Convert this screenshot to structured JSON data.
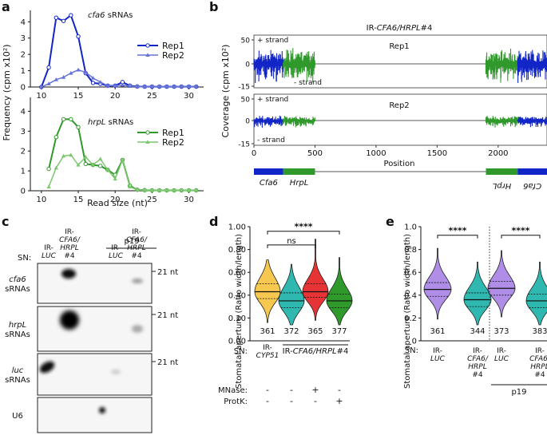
{
  "panels": {
    "a": "a",
    "b": "b",
    "c": "c",
    "d": "d",
    "e": "e"
  },
  "colors": {
    "blue": "#1226c7",
    "lightblue": "#6673d6",
    "green": "#2f9a2b",
    "lightgreen": "#7cc76e",
    "yellow": "#f6c84f",
    "teal": "#2fb8b0",
    "red": "#e63436",
    "purple": "#b08ee8"
  },
  "chart_data": [
    {
      "id": "a-cfa6",
      "type": "line",
      "title": "cfa6 sRNAs",
      "title_italic": "cfa6",
      "title_rest": " sRNAs",
      "ylabel": "Frequency (cpm x10²)",
      "xticks": [
        10,
        15,
        20,
        25,
        30
      ],
      "yticks": [
        0,
        1,
        2,
        3,
        4
      ],
      "xlim": [
        8.5,
        32
      ],
      "ylim": [
        0,
        4.7
      ],
      "x": [
        10,
        11,
        12,
        13,
        14,
        15,
        16,
        17,
        18,
        19,
        20,
        21,
        22,
        23,
        24,
        25,
        26,
        27,
        28,
        29,
        30,
        31
      ],
      "series": [
        {
          "name": "Rep1",
          "marker": "circle",
          "values": [
            0,
            1.2,
            4.25,
            4.05,
            4.4,
            3.1,
            0.85,
            0.25,
            0.2,
            0.08,
            0.08,
            0.3,
            0.08,
            0.03,
            0.02,
            0.02,
            0.02,
            0.02,
            0.02,
            0.02,
            0.02,
            0.02
          ]
        },
        {
          "name": "Rep2",
          "marker": "triangle",
          "values": [
            0,
            0.2,
            0.45,
            0.6,
            0.85,
            1.05,
            0.9,
            0.55,
            0.3,
            0.08,
            0.08,
            0.12,
            0.05,
            0.02,
            0.02,
            0.02,
            0.02,
            0.02,
            0.02,
            0.02,
            0.02,
            0.02
          ]
        }
      ]
    },
    {
      "id": "a-hrpl",
      "type": "line",
      "title": "hrpL sRNAs",
      "title_italic": "hrpL",
      "title_rest": " sRNAs",
      "xlabel": "Read size (nt)",
      "xticks": [
        10,
        15,
        20,
        25,
        30
      ],
      "yticks": [
        0,
        1,
        2,
        3,
        4
      ],
      "xlim": [
        8.5,
        32
      ],
      "ylim": [
        0,
        4.7
      ],
      "x": [
        11,
        12,
        13,
        14,
        15,
        16,
        17,
        18,
        19,
        20,
        21,
        22,
        23,
        24,
        25,
        26,
        27,
        28,
        29,
        30,
        31
      ],
      "series": [
        {
          "name": "Rep1",
          "marker": "circle",
          "values": [
            1.1,
            2.7,
            3.6,
            3.6,
            3.2,
            1.35,
            1.3,
            1.25,
            1.05,
            0.8,
            1.55,
            0.25,
            0.05,
            0.03,
            0.02,
            0.02,
            0.02,
            0.02,
            0.02,
            0.02,
            0.02
          ]
        },
        {
          "name": "Rep2",
          "marker": "triangle",
          "values": [
            0.2,
            1.15,
            1.75,
            1.8,
            1.3,
            1.7,
            1.3,
            1.6,
            1.05,
            0.6,
            1.55,
            0.2,
            0.05,
            0.03,
            0.02,
            0.02,
            0.02,
            0.02,
            0.02,
            0.02,
            0.02
          ]
        }
      ]
    },
    {
      "id": "b",
      "type": "area",
      "title": "IR-CFA6/HRPL#4",
      "title_pre": "IR-",
      "title_italic": "CFA6/HRPL",
      "title_post": "#4",
      "ylabel": "Coverage (cpm x10²)",
      "xlabel": "Position",
      "xticks": [
        0,
        500,
        1000,
        1500,
        2000
      ],
      "xlim": [
        0,
        2400
      ],
      "strand_plus": "+ strand",
      "strand_minus": "- strand",
      "tracks": [
        {
          "name": "Rep1",
          "yticks": [
            50,
            0,
            -15
          ],
          "ytick_labels": [
            "50",
            "0",
            "-15"
          ]
        },
        {
          "name": "Rep2",
          "yticks": [
            50,
            0,
            -15
          ],
          "ytick_labels": [
            "50",
            "0",
            "-15"
          ]
        }
      ],
      "regions": [
        {
          "name": "Cfa6",
          "start": 0,
          "end": 240,
          "color": "blue",
          "orientation": "forward"
        },
        {
          "name": "HrpL",
          "start": 240,
          "end": 500,
          "color": "green",
          "orientation": "forward"
        },
        {
          "name": "HrpL",
          "start": 1900,
          "end": 2160,
          "color": "green",
          "orientation": "reverse"
        },
        {
          "name": "Cfa6",
          "start": 2160,
          "end": 2400,
          "color": "blue",
          "orientation": "reverse"
        }
      ]
    },
    {
      "id": "d",
      "type": "violin",
      "ylabel": "Stomatal aperture (Ratio width/length)",
      "yticks": [
        0,
        0.2,
        0.4,
        0.6,
        0.8,
        1.0
      ],
      "ytick_labels": [
        "0.00",
        "0.20",
        "0.40",
        "0.60",
        "0.80",
        "1.00"
      ],
      "ylim": [
        0,
        1
      ],
      "groups": [
        {
          "n": "361",
          "median": 0.43,
          "q1": 0.37,
          "q3": 0.5,
          "min": 0.16,
          "max": 0.71,
          "color": "yellow"
        },
        {
          "n": "372",
          "median": 0.35,
          "q1": 0.29,
          "q3": 0.42,
          "min": 0.14,
          "max": 0.67,
          "color": "teal"
        },
        {
          "n": "365",
          "median": 0.43,
          "q1": 0.38,
          "q3": 0.5,
          "min": 0.18,
          "max": 0.89,
          "color": "red"
        },
        {
          "n": "377",
          "median": 0.35,
          "q1": 0.29,
          "q3": 0.41,
          "min": 0.14,
          "max": 0.73,
          "color": "green"
        }
      ],
      "sig": [
        {
          "from": 0,
          "to": 2,
          "label": "ns",
          "y": 0.84
        },
        {
          "from": 0,
          "to": 3,
          "label": "****",
          "y": 0.96
        }
      ],
      "rows": [
        {
          "label": "SN:",
          "values": []
        },
        {
          "label": "MNase:",
          "values": [
            "-",
            "-",
            "+",
            "-"
          ]
        },
        {
          "label": "ProtK:",
          "values": [
            "-",
            "-",
            "-",
            "+"
          ]
        }
      ],
      "sn_first_pre": "IR-",
      "sn_first_it": "CYP51",
      "sn_rest_pre": "IR-",
      "sn_rest_it": "CFA6/HRPL",
      "sn_rest_post": "#4"
    },
    {
      "id": "e",
      "type": "violin",
      "ylabel": "Stomatal aperture (Ratio width/length)",
      "yticks": [
        0,
        0.2,
        0.4,
        0.6,
        0.8,
        1.0
      ],
      "ytick_labels": [
        "0",
        "0.2",
        "0.4",
        "0.6",
        "0.8",
        "1.0"
      ],
      "ylim": [
        0,
        1
      ],
      "groups": [
        {
          "n": "361",
          "median": 0.45,
          "q1": 0.39,
          "q3": 0.51,
          "min": 0.19,
          "max": 0.81,
          "color": "purple"
        },
        {
          "n": "344",
          "median": 0.36,
          "q1": 0.3,
          "q3": 0.42,
          "min": 0.14,
          "max": 0.69,
          "color": "teal"
        },
        {
          "n": "373",
          "median": 0.46,
          "q1": 0.4,
          "q3": 0.52,
          "min": 0.21,
          "max": 0.79,
          "color": "purple"
        },
        {
          "n": "383",
          "median": 0.35,
          "q1": 0.29,
          "q3": 0.41,
          "min": 0.14,
          "max": 0.69,
          "color": "teal"
        }
      ],
      "sig": [
        {
          "from": 0,
          "to": 1,
          "label": "****",
          "y": 0.925
        },
        {
          "from": 2,
          "to": 3,
          "label": "****",
          "y": 0.925
        }
      ],
      "sn_label": "SN:",
      "sn": [
        {
          "pre": "IR-",
          "it": "LUC",
          "post": ""
        },
        {
          "pre": "IR-",
          "it": "CFA6/ HRPL",
          "post": "#4"
        },
        {
          "pre": "IR-",
          "it": "LUC",
          "post": ""
        },
        {
          "pre": "IR-",
          "it": "CFA6/ HRPL",
          "post": "#4"
        }
      ],
      "group_label": "p19"
    }
  ],
  "blot": {
    "sn_label": "SN:",
    "p19_label": "p19",
    "lanes": [
      {
        "pre": "IR-",
        "it": "LUC",
        "post": ""
      },
      {
        "pre": "IR-",
        "it": "CFA6/ HRPL",
        "post": "#4"
      },
      {
        "pre": "",
        "it": "",
        "post": ""
      },
      {
        "pre": "IR-",
        "it": "LUC",
        "post": ""
      },
      {
        "pre": "IR-",
        "it": "CFA6/ HRPL",
        "post": "#4"
      }
    ],
    "rows": [
      {
        "label_it": "cfa6",
        "label_rest": "sRNAs",
        "size": "21 nt"
      },
      {
        "label_it": "hrpL",
        "label_rest": "sRNAs",
        "size": "21 nt"
      },
      {
        "label_it": "luc",
        "label_rest": "sRNAs",
        "size": "21 nt"
      },
      {
        "label_it": "",
        "label_rest": "U6",
        "size": ""
      }
    ]
  }
}
